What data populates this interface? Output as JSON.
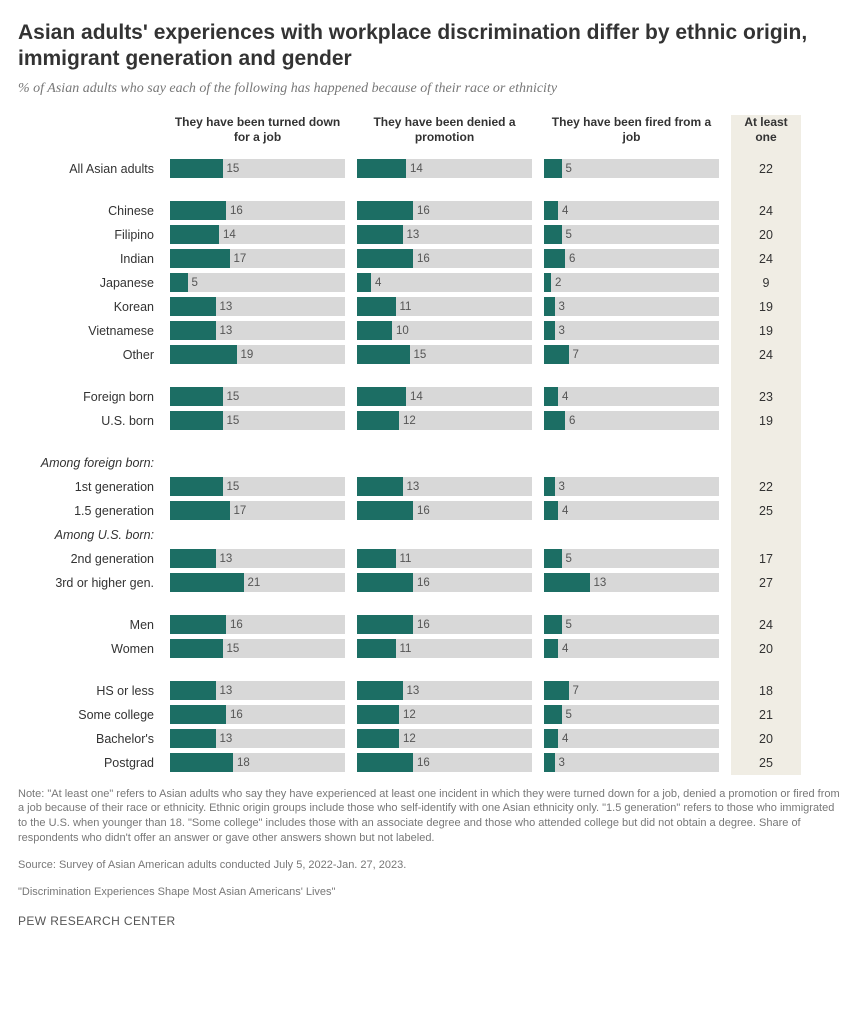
{
  "title": "Asian adults' experiences with workplace discrimination differ by ethnic origin, immigrant generation and gender",
  "subtitle": "% of Asian adults who say each of the following has happened because of their race or ethnicity",
  "columns": [
    "They have been turned down for a job",
    "They have been denied a promotion",
    "They have been fired from a job",
    "At least one"
  ],
  "bar_color": "#1c6e64",
  "track_color": "#d8d8d8",
  "atleast_bg": "#f0ede4",
  "max_value": 50,
  "groups": [
    {
      "rows": [
        {
          "label": "All Asian adults",
          "v": [
            15,
            14,
            5
          ],
          "atleast": 22
        }
      ]
    },
    {
      "rows": [
        {
          "label": "Chinese",
          "v": [
            16,
            16,
            4
          ],
          "atleast": 24
        },
        {
          "label": "Filipino",
          "v": [
            14,
            13,
            5
          ],
          "atleast": 20
        },
        {
          "label": "Indian",
          "v": [
            17,
            16,
            6
          ],
          "atleast": 24
        },
        {
          "label": "Japanese",
          "v": [
            5,
            4,
            2
          ],
          "atleast": 9
        },
        {
          "label": "Korean",
          "v": [
            13,
            11,
            3
          ],
          "atleast": 19
        },
        {
          "label": "Vietnamese",
          "v": [
            13,
            10,
            3
          ],
          "atleast": 19
        },
        {
          "label": "Other",
          "v": [
            19,
            15,
            7
          ],
          "atleast": 24
        }
      ]
    },
    {
      "rows": [
        {
          "label": "Foreign born",
          "v": [
            15,
            14,
            4
          ],
          "atleast": 23
        },
        {
          "label": "U.S. born",
          "v": [
            15,
            12,
            6
          ],
          "atleast": 19
        }
      ]
    },
    {
      "heading": "Among foreign born:",
      "rows": [
        {
          "label": "1st generation",
          "v": [
            15,
            13,
            3
          ],
          "atleast": 22
        },
        {
          "label": "1.5 generation",
          "v": [
            17,
            16,
            4
          ],
          "atleast": 25
        }
      ],
      "heading2": "Among U.S. born:",
      "rows2": [
        {
          "label": "2nd generation",
          "v": [
            13,
            11,
            5
          ],
          "atleast": 17
        },
        {
          "label": "3rd or higher gen.",
          "v": [
            21,
            16,
            13
          ],
          "atleast": 27
        }
      ]
    },
    {
      "rows": [
        {
          "label": "Men",
          "v": [
            16,
            16,
            5
          ],
          "atleast": 24
        },
        {
          "label": "Women",
          "v": [
            15,
            11,
            4
          ],
          "atleast": 20
        }
      ]
    },
    {
      "rows": [
        {
          "label": "HS or less",
          "v": [
            13,
            13,
            7
          ],
          "atleast": 18
        },
        {
          "label": "Some college",
          "v": [
            16,
            12,
            5
          ],
          "atleast": 21
        },
        {
          "label": "Bachelor's",
          "v": [
            13,
            12,
            4
          ],
          "atleast": 20
        },
        {
          "label": "Postgrad",
          "v": [
            18,
            16,
            3
          ],
          "atleast": 25
        }
      ]
    }
  ],
  "note": "Note: \"At least one\" refers to Asian adults who say they have experienced at least one incident in which they were turned down for a job, denied a promotion or fired from a job because of their race or ethnicity. Ethnic origin groups include those who self-identify with one Asian ethnicity only. \"1.5 generation\" refers to those who immigrated to the U.S. when younger than 18. \"Some college\" includes those with an associate degree and those who attended college but did not obtain a degree. Share of respondents who didn't offer an answer or gave other answers shown but not labeled.",
  "source": "Source: Survey of Asian American adults conducted July 5, 2022-Jan. 27, 2023.",
  "report": "\"Discrimination Experiences Shape Most Asian Americans' Lives\"",
  "footer": "PEW RESEARCH CENTER"
}
